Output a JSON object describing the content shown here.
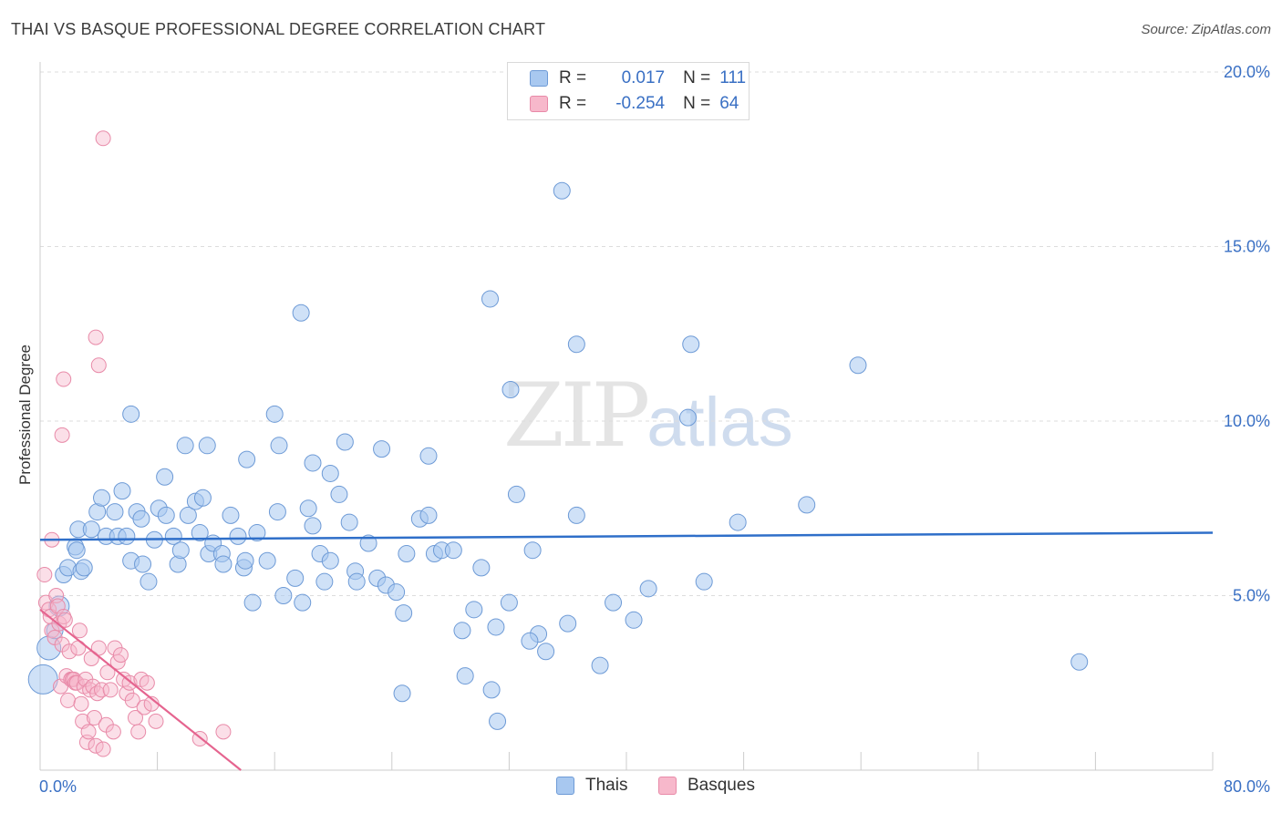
{
  "title": "THAI VS BASQUE PROFESSIONAL DEGREE CORRELATION CHART",
  "source": "Source: ZipAtlas.com",
  "watermark": {
    "zip": "ZIP",
    "atlas": "atlas"
  },
  "legend": {
    "rows": [
      {
        "r_label": "R =",
        "r_value": "0.017",
        "n_label": "N =",
        "n_value": "111"
      },
      {
        "r_label": "R =",
        "r_value": "-0.254",
        "n_label": "N =",
        "n_value": "64"
      }
    ]
  },
  "bottom_legend": {
    "thais": "Thais",
    "basques": "Basques"
  },
  "colors": {
    "thai_fill": "#a8c8f0",
    "thai_stroke": "#6d9ad6",
    "thai_line": "#2f6fc9",
    "basque_fill": "#f7b8cb",
    "basque_stroke": "#e88aa8",
    "basque_line": "#e5648f",
    "tick": "#3a70c4",
    "grid": "#dddddd"
  },
  "chart_data": {
    "type": "scatter",
    "title": "THAI VS BASQUE PROFESSIONAL DEGREE CORRELATION CHART",
    "xlabel": "",
    "ylabel": "Professional Degree",
    "xlim": [
      0,
      80
    ],
    "ylim": [
      0,
      20
    ],
    "x_tick_labels": [
      "0.0%",
      "80.0%"
    ],
    "y_ticks": [
      5,
      10,
      15,
      20
    ],
    "y_tick_labels": [
      "5.0%",
      "10.0%",
      "15.0%",
      "20.0%"
    ],
    "grid": true,
    "series": [
      {
        "name": "Thais",
        "r": 0.017,
        "n": 111,
        "trend": {
          "x": [
            0,
            80
          ],
          "y": [
            6.6,
            6.8
          ]
        },
        "points": [
          [
            0.2,
            2.6
          ],
          [
            0.6,
            3.5
          ],
          [
            1.0,
            4.0
          ],
          [
            1.3,
            4.7
          ],
          [
            1.6,
            5.6
          ],
          [
            1.9,
            5.8
          ],
          [
            2.4,
            6.4
          ],
          [
            2.8,
            5.7
          ],
          [
            2.6,
            6.9
          ],
          [
            3.5,
            6.9
          ],
          [
            3.9,
            7.4
          ],
          [
            4.2,
            7.8
          ],
          [
            4.5,
            6.7
          ],
          [
            5.1,
            7.4
          ],
          [
            5.3,
            6.7
          ],
          [
            5.6,
            8.0
          ],
          [
            5.9,
            6.7
          ],
          [
            6.2,
            6.0
          ],
          [
            6.6,
            7.4
          ],
          [
            6.9,
            7.2
          ],
          [
            7.4,
            5.4
          ],
          [
            7.8,
            6.6
          ],
          [
            8.1,
            7.5
          ],
          [
            8.6,
            7.3
          ],
          [
            9.1,
            6.7
          ],
          [
            9.4,
            5.9
          ],
          [
            9.6,
            6.3
          ],
          [
            10.1,
            7.3
          ],
          [
            10.6,
            7.7
          ],
          [
            10.9,
            6.8
          ],
          [
            11.1,
            7.8
          ],
          [
            11.5,
            6.2
          ],
          [
            11.8,
            6.5
          ],
          [
            12.4,
            6.2
          ],
          [
            13.0,
            7.3
          ],
          [
            13.5,
            6.7
          ],
          [
            13.9,
            5.8
          ],
          [
            14.0,
            6.0
          ],
          [
            14.5,
            4.8
          ],
          [
            14.8,
            6.8
          ],
          [
            15.5,
            6.0
          ],
          [
            16.2,
            7.4
          ],
          [
            16.6,
            5.0
          ],
          [
            17.4,
            5.5
          ],
          [
            17.9,
            4.8
          ],
          [
            18.3,
            7.5
          ],
          [
            18.6,
            7.0
          ],
          [
            19.1,
            6.2
          ],
          [
            19.4,
            5.4
          ],
          [
            19.8,
            6.0
          ],
          [
            20.4,
            7.9
          ],
          [
            21.1,
            7.1
          ],
          [
            21.5,
            5.7
          ],
          [
            21.6,
            5.4
          ],
          [
            22.4,
            6.5
          ],
          [
            23.0,
            5.5
          ],
          [
            23.6,
            5.3
          ],
          [
            24.3,
            5.1
          ],
          [
            24.8,
            4.5
          ],
          [
            25.0,
            6.2
          ],
          [
            25.9,
            7.2
          ],
          [
            26.5,
            7.3
          ],
          [
            26.9,
            6.2
          ],
          [
            27.4,
            6.3
          ],
          [
            28.8,
            4.0
          ],
          [
            29.6,
            4.6
          ],
          [
            30.1,
            5.8
          ],
          [
            30.8,
            2.3
          ],
          [
            31.1,
            4.1
          ],
          [
            32.0,
            4.8
          ],
          [
            32.5,
            7.9
          ],
          [
            33.6,
            6.3
          ],
          [
            34.0,
            3.9
          ],
          [
            34.5,
            3.4
          ],
          [
            36.0,
            4.2
          ],
          [
            36.6,
            7.3
          ],
          [
            38.2,
            3.0
          ],
          [
            39.1,
            4.8
          ],
          [
            40.5,
            4.3
          ],
          [
            47.6,
            7.1
          ],
          [
            52.3,
            7.6
          ],
          [
            70.9,
            3.1
          ],
          [
            2.5,
            6.3
          ],
          [
            6.2,
            10.2
          ],
          [
            9.9,
            9.3
          ],
          [
            11.4,
            9.3
          ],
          [
            14.1,
            8.9
          ],
          [
            16.0,
            10.2
          ],
          [
            16.3,
            9.3
          ],
          [
            18.6,
            8.8
          ],
          [
            19.8,
            8.5
          ],
          [
            20.8,
            9.4
          ],
          [
            23.3,
            9.2
          ],
          [
            26.5,
            9.0
          ],
          [
            30.7,
            13.5
          ],
          [
            32.1,
            10.9
          ],
          [
            36.6,
            12.2
          ],
          [
            35.6,
            16.6
          ],
          [
            44.2,
            10.1
          ],
          [
            44.4,
            12.2
          ],
          [
            55.8,
            11.6
          ],
          [
            8.5,
            8.4
          ],
          [
            17.8,
            13.1
          ],
          [
            12.5,
            5.9
          ],
          [
            31.2,
            1.4
          ],
          [
            24.7,
            2.2
          ],
          [
            29.0,
            2.7
          ],
          [
            33.4,
            3.7
          ],
          [
            28.2,
            6.3
          ],
          [
            41.5,
            5.2
          ],
          [
            45.3,
            5.4
          ],
          [
            3.0,
            5.8
          ],
          [
            7.0,
            5.9
          ]
        ]
      },
      {
        "name": "Basques",
        "r": -0.254,
        "n": 64,
        "trend": {
          "x": [
            0,
            13.7
          ],
          "y": [
            4.6,
            0.0
          ]
        },
        "points": [
          [
            0.3,
            5.6
          ],
          [
            0.4,
            4.8
          ],
          [
            0.6,
            4.6
          ],
          [
            0.7,
            4.4
          ],
          [
            0.8,
            4.0
          ],
          [
            1.0,
            3.8
          ],
          [
            1.1,
            5.0
          ],
          [
            1.2,
            4.7
          ],
          [
            1.3,
            4.2
          ],
          [
            1.4,
            2.4
          ],
          [
            1.5,
            3.6
          ],
          [
            1.6,
            4.4
          ],
          [
            1.7,
            4.3
          ],
          [
            1.8,
            2.7
          ],
          [
            1.9,
            2.0
          ],
          [
            2.0,
            3.4
          ],
          [
            2.1,
            2.6
          ],
          [
            2.2,
            2.6
          ],
          [
            2.3,
            2.6
          ],
          [
            2.4,
            2.5
          ],
          [
            2.5,
            2.5
          ],
          [
            2.6,
            3.5
          ],
          [
            2.7,
            4.0
          ],
          [
            2.8,
            1.9
          ],
          [
            2.9,
            1.4
          ],
          [
            3.0,
            2.4
          ],
          [
            3.1,
            2.6
          ],
          [
            3.2,
            0.8
          ],
          [
            3.3,
            1.1
          ],
          [
            3.4,
            2.3
          ],
          [
            3.5,
            3.2
          ],
          [
            3.6,
            2.4
          ],
          [
            3.7,
            1.5
          ],
          [
            3.8,
            0.7
          ],
          [
            3.9,
            2.2
          ],
          [
            4.0,
            3.5
          ],
          [
            4.2,
            2.3
          ],
          [
            4.3,
            0.6
          ],
          [
            4.5,
            1.3
          ],
          [
            4.6,
            2.8
          ],
          [
            4.8,
            2.3
          ],
          [
            5.0,
            1.1
          ],
          [
            5.1,
            3.5
          ],
          [
            5.3,
            3.1
          ],
          [
            5.5,
            3.3
          ],
          [
            5.7,
            2.6
          ],
          [
            5.9,
            2.2
          ],
          [
            6.1,
            2.5
          ],
          [
            6.3,
            2.0
          ],
          [
            6.5,
            1.5
          ],
          [
            6.7,
            1.1
          ],
          [
            6.9,
            2.6
          ],
          [
            7.1,
            1.8
          ],
          [
            7.3,
            2.5
          ],
          [
            7.6,
            1.9
          ],
          [
            7.9,
            1.4
          ],
          [
            3.8,
            12.4
          ],
          [
            4.0,
            11.6
          ],
          [
            1.6,
            11.2
          ],
          [
            1.5,
            9.6
          ],
          [
            0.8,
            6.6
          ],
          [
            4.3,
            18.1
          ],
          [
            12.5,
            1.1
          ],
          [
            10.9,
            0.9
          ]
        ]
      }
    ]
  }
}
